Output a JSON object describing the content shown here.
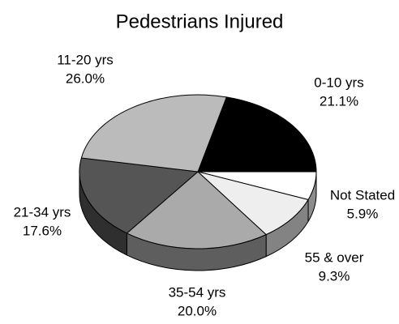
{
  "chart_data": {
    "type": "pie",
    "title": "Pedestrians Injured",
    "categories": [
      "0-10 yrs",
      "Not Stated",
      "55 & over",
      "35-54 yrs",
      "21-34 yrs",
      "11-20 yrs"
    ],
    "values": [
      21.1,
      5.9,
      9.3,
      20.0,
      17.6,
      26.0
    ],
    "value_labels": [
      "21.1%",
      "5.9%",
      "9.3%",
      "20.0%",
      "17.6%",
      "26.0%"
    ],
    "colors": [
      "#000000",
      "#ffffff",
      "#eeeeee",
      "#aaaaaa",
      "#555555",
      "#bbbbbb"
    ]
  }
}
